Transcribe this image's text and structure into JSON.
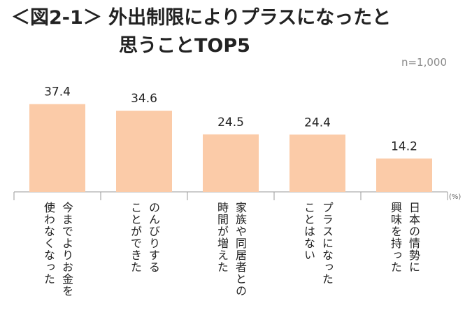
{
  "header": {
    "title_line1": "＜図2-1＞ 外出制限によりプラスになったと",
    "title_line2": "思うことTOP5",
    "sample_note": "n=1,000",
    "unit": "(%)"
  },
  "chart_data": {
    "type": "bar",
    "title": "＜図2-1＞ 外出制限によりプラスになったと思うことTOP5",
    "categories": [
      "今までよりお金を使わなくなった",
      "のんびりすることができた",
      "家族や同居者との時間が増えた",
      "プラスになったことはない",
      "日本の情勢に興味を持った"
    ],
    "category_lines": [
      [
        "今までよりお金を",
        "使わなくなった"
      ],
      [
        "のんびりする",
        "ことができた"
      ],
      [
        "家族や同居者との",
        "時間が増えた"
      ],
      [
        "プラスになった",
        "ことはない"
      ],
      [
        "日本の情勢に",
        "興味を持った"
      ]
    ],
    "values": [
      37.4,
      34.6,
      24.5,
      24.4,
      14.2
    ],
    "value_labels": [
      "37.4",
      "34.6",
      "24.5",
      "24.4",
      "14.2"
    ],
    "ylabel": "(%)",
    "xlabel": "",
    "ylim": [
      0,
      40
    ],
    "grid": false,
    "bar_color": "#fbcba8",
    "axis_color": "#9a9a9a"
  }
}
